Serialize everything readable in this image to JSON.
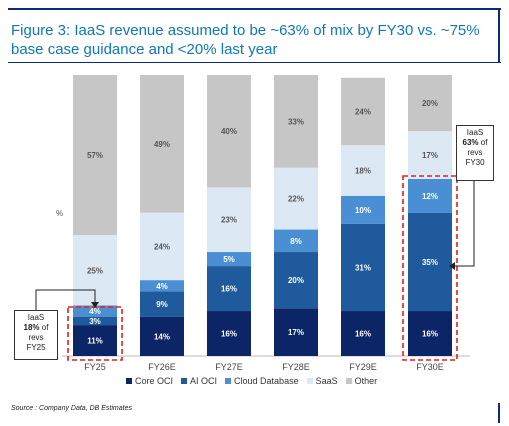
{
  "title": "Figure 3: IaaS revenue assumed to be ~63% of mix by FY30 vs. ~75% base case guidance and <20% last year",
  "source": "Source : Company Data, DB Estimates",
  "annotations": {
    "left": {
      "line1": "IaaS",
      "value": "18%",
      "line3": "of",
      "line4": "revs",
      "line5": "FY25"
    },
    "right": {
      "line1": "IaaS",
      "value": "63%",
      "line3": "of",
      "line4": "revs",
      "line5": "FY30"
    }
  },
  "colors": {
    "Core OCI": "#0b2567",
    "AI OCI": "#1e5a9c",
    "Cloud Database": "#4a8fd4",
    "SaaS": "#dde8f5",
    "Other": "#c6c6c6",
    "highlight": "#e02020"
  },
  "chart_data": {
    "type": "bar",
    "stacked": true,
    "ylabel": "%",
    "ylim": [
      0,
      100
    ],
    "categories": [
      "FY25",
      "FY26E",
      "FY27E",
      "FY28E",
      "FY29E",
      "FY30E"
    ],
    "series": [
      {
        "name": "Core OCI",
        "values": [
          11,
          14,
          16,
          17,
          16,
          16
        ]
      },
      {
        "name": "AI OCI",
        "values": [
          3,
          9,
          16,
          20,
          31,
          35
        ]
      },
      {
        "name": "Cloud Database",
        "values": [
          4,
          4,
          5,
          8,
          10,
          12
        ]
      },
      {
        "name": "SaaS",
        "values": [
          25,
          24,
          23,
          22,
          18,
          17
        ]
      },
      {
        "name": "Other",
        "values": [
          57,
          49,
          40,
          33,
          24,
          20
        ]
      }
    ],
    "highlighted": [
      "FY25",
      "FY30E"
    ],
    "legend_position": "bottom"
  }
}
